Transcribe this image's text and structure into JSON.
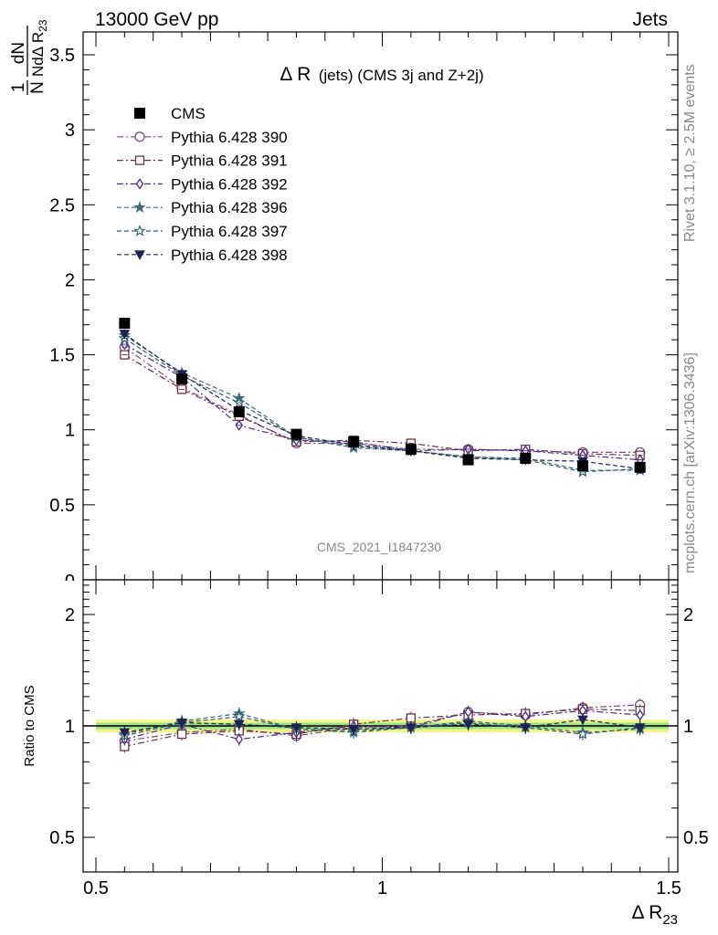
{
  "header": {
    "left": "13000 GeV pp",
    "right": "Jets"
  },
  "side_text": {
    "rivet": "Rivet 3.1.10, ≥ 2.5M events",
    "mcplots": "mcplots.cern.ch [arXiv:1306.3436]"
  },
  "watermark": "CMS_2021_I1847230",
  "chart_data": [
    {
      "type": "scatter",
      "title_main": "Δ R",
      "title_rest": "(jets) (CMS 3j and Z+2j)",
      "ylabel": "1/N dN/dΔ R23",
      "ylabel_frac_num": "dN",
      "ylabel_frac_den": "NdΔ R",
      "ylabel_one": "1",
      "ylabel_sub": "23",
      "xlim": [
        0.5,
        1.5
      ],
      "ylim": [
        0,
        3.5
      ],
      "yticks": [
        "0.5",
        "1",
        "1.5",
        "2",
        "2.5",
        "3",
        "3.5"
      ],
      "ytick_bottom_partial": "0",
      "legend_placement": "top-left",
      "x": [
        0.55,
        0.65,
        0.75,
        0.85,
        0.95,
        1.05,
        1.15,
        1.25,
        1.35,
        1.45
      ],
      "series": [
        {
          "name": "CMS",
          "marker": "square-filled",
          "color": "#000000",
          "values": [
            1.71,
            1.34,
            1.12,
            0.97,
            0.92,
            0.87,
            0.8,
            0.81,
            0.76,
            0.75
          ]
        },
        {
          "name": "Pythia 6.428 390",
          "marker": "circle-open",
          "color": "#7b4f86",
          "dash": "dashdot",
          "values": [
            1.55,
            1.28,
            1.1,
            0.91,
            0.91,
            0.87,
            0.87,
            0.86,
            0.85,
            0.85
          ]
        },
        {
          "name": "Pythia 6.428 391",
          "marker": "square-open",
          "color": "#6a3045",
          "dash": "dashdot",
          "values": [
            1.5,
            1.27,
            1.09,
            0.92,
            0.93,
            0.91,
            0.86,
            0.87,
            0.84,
            0.83
          ]
        },
        {
          "name": "Pythia 6.428 392",
          "marker": "diamond-open",
          "color": "#4a2a8a",
          "dash": "dashdot",
          "values": [
            1.57,
            1.35,
            1.03,
            0.93,
            0.92,
            0.86,
            0.87,
            0.86,
            0.83,
            0.8
          ]
        },
        {
          "name": "Pythia 6.428 396",
          "marker": "star4-filled",
          "color": "#3f6b7a",
          "dash": "dash",
          "values": [
            1.63,
            1.38,
            1.21,
            0.95,
            0.88,
            0.86,
            0.82,
            0.81,
            0.73,
            0.73
          ]
        },
        {
          "name": "Pythia 6.428 397",
          "marker": "star-open",
          "color": "#355f73",
          "dash": "dash",
          "values": [
            1.61,
            1.36,
            1.18,
            0.95,
            0.89,
            0.86,
            0.82,
            0.8,
            0.72,
            0.74
          ]
        },
        {
          "name": "Pythia 6.428 398",
          "marker": "triangle-down-filled",
          "color": "#1d2451",
          "dash": "dash",
          "values": [
            1.64,
            1.37,
            1.13,
            0.96,
            0.9,
            0.86,
            0.81,
            0.8,
            0.79,
            0.74
          ]
        }
      ]
    },
    {
      "type": "scatter",
      "ylabel": "Ratio to CMS",
      "xlabel_main": "Δ R",
      "xlabel_sub": "23",
      "xlim": [
        0.5,
        1.5
      ],
      "ylim_log": [
        0.4,
        2.5
      ],
      "xticks": [
        "0.5",
        "1",
        "1.5"
      ],
      "yticks": [
        "0.5",
        "1",
        "2"
      ],
      "band_inner": [
        0.98,
        1.02
      ],
      "band_outer": [
        0.96,
        1.04
      ],
      "x": [
        0.55,
        0.65,
        0.75,
        0.85,
        0.95,
        1.05,
        1.15,
        1.25,
        1.35,
        1.45
      ],
      "series": [
        {
          "name": "Pythia 6.428 390",
          "marker": "circle-open",
          "color": "#7b4f86",
          "dash": "dashdot",
          "values": [
            0.91,
            0.96,
            0.98,
            0.94,
            0.99,
            1.0,
            1.09,
            1.07,
            1.12,
            1.14
          ]
        },
        {
          "name": "Pythia 6.428 391",
          "marker": "square-open",
          "color": "#6a3045",
          "dash": "dashdot",
          "values": [
            0.88,
            0.95,
            0.97,
            0.95,
            1.01,
            1.05,
            1.07,
            1.08,
            1.11,
            1.1
          ]
        },
        {
          "name": "Pythia 6.428 392",
          "marker": "diamond-open",
          "color": "#4a2a8a",
          "dash": "dashdot",
          "values": [
            0.92,
            1.01,
            0.92,
            0.96,
            1.0,
            0.99,
            1.09,
            1.06,
            1.1,
            1.07
          ]
        },
        {
          "name": "Pythia 6.428 396",
          "marker": "star4-filled",
          "color": "#3f6b7a",
          "dash": "dash",
          "values": [
            0.95,
            1.03,
            1.08,
            0.98,
            0.96,
            0.99,
            1.03,
            1.0,
            0.96,
            0.98
          ]
        },
        {
          "name": "Pythia 6.428 397",
          "marker": "star-open",
          "color": "#355f73",
          "dash": "dash",
          "values": [
            0.94,
            1.02,
            1.06,
            0.98,
            0.97,
            0.99,
            1.02,
            0.99,
            0.95,
            0.99
          ]
        },
        {
          "name": "Pythia 6.428 398",
          "marker": "triangle-down-filled",
          "color": "#1d2451",
          "dash": "dash",
          "values": [
            0.96,
            1.02,
            1.01,
            0.99,
            0.98,
            0.99,
            1.01,
            0.99,
            1.04,
            0.99
          ]
        }
      ]
    }
  ]
}
